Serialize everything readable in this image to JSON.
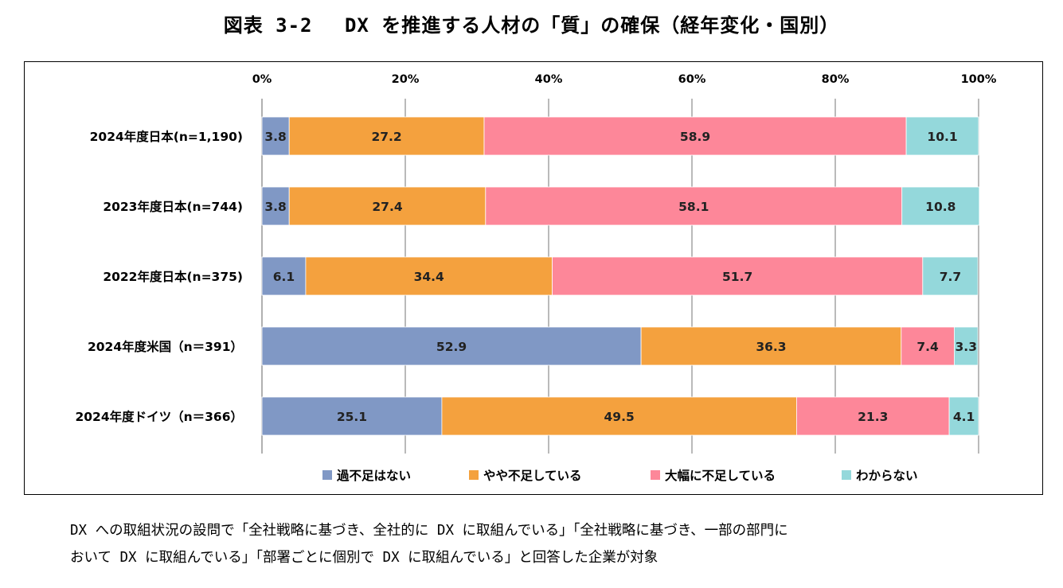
{
  "figure": {
    "title": "図表 3-2　 DX を推進する人材の「質」の確保（経年変化・国別）"
  },
  "chart_data": {
    "type": "bar",
    "orientation": "horizontal",
    "stacked": true,
    "stack_mode": "percent",
    "categories": [
      "2024年度日本(n=1,190)",
      "2023年度日本(n=744)",
      "2022年度日本(n=375)",
      "2024年度米国（n＝391）",
      "2024年度ドイツ（n＝366）"
    ],
    "series": [
      {
        "name": "過不足はない",
        "color": "#8098C5",
        "values": [
          3.8,
          3.8,
          6.1,
          52.9,
          25.1
        ]
      },
      {
        "name": "やや不足している",
        "color": "#F4A13E",
        "values": [
          27.2,
          27.4,
          34.4,
          36.3,
          49.5
        ]
      },
      {
        "name": "大幅に不足している",
        "color": "#FD8799",
        "values": [
          58.9,
          58.1,
          51.7,
          7.4,
          21.3
        ]
      },
      {
        "name": "わからない",
        "color": "#94D8DB",
        "values": [
          10.1,
          10.8,
          7.7,
          3.3,
          4.1
        ]
      }
    ],
    "xlim": [
      0,
      100
    ],
    "ticks": [
      "0%",
      "20%",
      "40%",
      "60%",
      "80%",
      "100%"
    ],
    "tick_values": [
      0,
      20,
      40,
      60,
      80,
      100
    ],
    "axis_position": "top",
    "grid": true,
    "legend": "bottom",
    "data_labels": true
  },
  "note": {
    "lines": [
      "DX への取組状況の設問で「全社戦略に基づき、全社的に DX に取組んでいる」「全社戦略に基づき、一部の部門に",
      "おいて DX に取組んでいる」「部署ごとに個別で DX に取組んでいる」と回答した企業が対象"
    ]
  }
}
